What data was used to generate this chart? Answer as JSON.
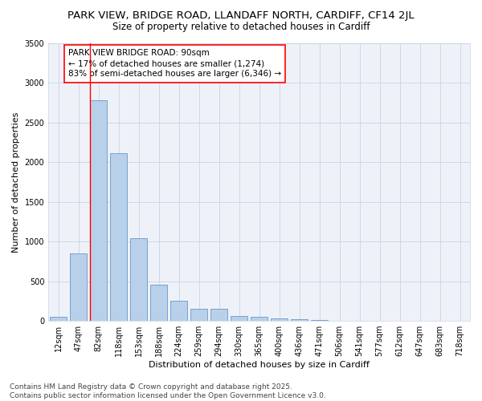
{
  "title1": "PARK VIEW, BRIDGE ROAD, LLANDAFF NORTH, CARDIFF, CF14 2JL",
  "title2": "Size of property relative to detached houses in Cardiff",
  "xlabel": "Distribution of detached houses by size in Cardiff",
  "ylabel": "Number of detached properties",
  "categories": [
    "12sqm",
    "47sqm",
    "82sqm",
    "118sqm",
    "153sqm",
    "188sqm",
    "224sqm",
    "259sqm",
    "294sqm",
    "330sqm",
    "365sqm",
    "400sqm",
    "436sqm",
    "471sqm",
    "506sqm",
    "541sqm",
    "577sqm",
    "612sqm",
    "647sqm",
    "683sqm",
    "718sqm"
  ],
  "values": [
    55,
    850,
    2780,
    2110,
    1040,
    460,
    250,
    155,
    150,
    65,
    55,
    30,
    20,
    10,
    5,
    2,
    1,
    0,
    0,
    0,
    0
  ],
  "bar_color": "#b8d0ea",
  "bar_edge_color": "#6699cc",
  "red_line_x": 2,
  "ylim": [
    0,
    3500
  ],
  "yticks": [
    0,
    500,
    1000,
    1500,
    2000,
    2500,
    3000,
    3500
  ],
  "annotation_text_line1": "PARK VIEW BRIDGE ROAD: 90sqm",
  "annotation_text_line2": "← 17% of detached houses are smaller (1,274)",
  "annotation_text_line3": "83% of semi-detached houses are larger (6,346) →",
  "footer": "Contains HM Land Registry data © Crown copyright and database right 2025.\nContains public sector information licensed under the Open Government Licence v3.0.",
  "background_color": "#eef2f8",
  "grid_color": "#c8d4e8",
  "title1_fontsize": 9.5,
  "title2_fontsize": 8.5,
  "xlabel_fontsize": 8,
  "ylabel_fontsize": 8,
  "tick_fontsize": 7,
  "annotation_fontsize": 7.5,
  "footer_fontsize": 6.5
}
